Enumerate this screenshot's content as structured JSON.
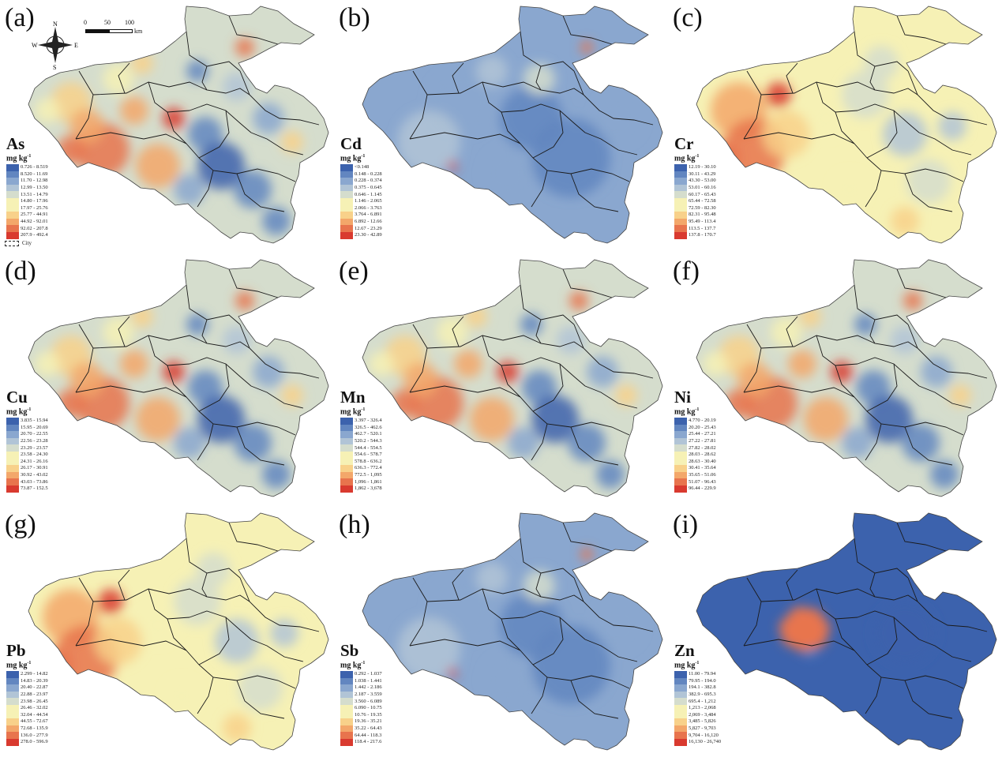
{
  "map": {
    "unit": "mg kg",
    "unit_sup": "-1",
    "compass": {
      "n": "N",
      "s": "S",
      "e": "E",
      "w": "W"
    },
    "scale": {
      "ticks": [
        "0",
        "50",
        "100"
      ],
      "unit": "km"
    },
    "city_legend": "City",
    "colors": [
      "#3c62ad",
      "#6286c0",
      "#8aa7cf",
      "#b1c4d6",
      "#d5ddcd",
      "#f6f1b5",
      "#f8d18a",
      "#f3a76a",
      "#e8744d",
      "#d93a2f"
    ],
    "panels": [
      {
        "letter": "(a)",
        "element": "As",
        "ramp": "mixed",
        "show_compass": true,
        "show_scale": true,
        "show_city": true,
        "classes": [
          "0.726 - 8.519",
          "8.520 - 11.69",
          "11.70 - 12.98",
          "12.99 - 13.50",
          "13.51 - 14.79",
          "14.80 - 17.96",
          "17.97 - 25.76",
          "25.77 - 44.91",
          "44.92 - 92.01",
          "92.02 - 207.8",
          "207.9 - 492.4"
        ]
      },
      {
        "letter": "(b)",
        "element": "Cd",
        "ramp": "blue",
        "classes": [
          "<0.148",
          "0.148 - 0.228",
          "0.228 - 0.374",
          "0.375 - 0.645",
          "0.646 - 1.145",
          "1.146 - 2.065",
          "2.066 - 3.763",
          "3.764 - 6.891",
          "6.892 - 12.66",
          "12.67 - 23.29",
          "23.30 - 42.89"
        ]
      },
      {
        "letter": "(c)",
        "element": "Cr",
        "ramp": "warm",
        "classes": [
          "12.19 - 30.10",
          "30.11 - 43.29",
          "43.30 - 53.00",
          "53.01 - 60.16",
          "60.17 - 65.43",
          "65.44 - 72.58",
          "72.59 - 82.30",
          "82.31 - 95.48",
          "95.49 - 113.4",
          "113.5 - 137.7",
          "137.8 - 170.7"
        ]
      },
      {
        "letter": "(d)",
        "element": "Cu",
        "ramp": "mixed",
        "classes": [
          "3.835 - 15.94",
          "15.95 - 20.69",
          "20.70 - 22.55",
          "22.56 - 23.28",
          "23.29 - 23.57",
          "23.58 - 24.30",
          "24.31 - 26.16",
          "26.17 - 30.91",
          "30.92 - 43.02",
          "43.03 - 73.86",
          "73.87 - 152.5"
        ]
      },
      {
        "letter": "(e)",
        "element": "Mn",
        "ramp": "mixed",
        "classes": [
          "3.397 - 326.4",
          "326.5 - 462.6",
          "462.7 - 520.1",
          "520.2 - 544.3",
          "544.4 - 554.5",
          "554.6 - 578.7",
          "578.8 - 636.2",
          "636.3 - 772.4",
          "772.5 - 1,095",
          "1,096 - 1,861",
          "1,862 - 3,678"
        ]
      },
      {
        "letter": "(f)",
        "element": "Ni",
        "ramp": "mixed",
        "classes": [
          "4.770 - 20.19",
          "20.20 - 25.43",
          "25.44 - 27.21",
          "27.22 - 27.81",
          "27.82 - 28.02",
          "28.03 - 28.62",
          "28.63 - 30.40",
          "30.41 - 35.64",
          "35.65 - 51.06",
          "51.07 - 96.43",
          "96.44 - 229.9"
        ]
      },
      {
        "letter": "(g)",
        "element": "Pb",
        "ramp": "warm",
        "classes": [
          "2.299 - 14.82",
          "14.83 - 20.39",
          "20.40 - 22.87",
          "22.88 - 23.97",
          "23.98 - 26.45",
          "26.46 - 32.02",
          "32.04 - 44.54",
          "44.55 - 72.67",
          "72.68 - 135.9",
          "136.0 - 277.9",
          "278.0 - 596.9"
        ]
      },
      {
        "letter": "(h)",
        "element": "Sb",
        "ramp": "blue",
        "classes": [
          "0.292 - 1.037",
          "1.038 - 1.441",
          "1.442 - 2.186",
          "2.187 - 3.559",
          "3.560 - 6.089",
          "6.090 - 10.75",
          "10.76 - 19.35",
          "19.36 - 35.21",
          "35.22 - 64.43",
          "64.44 - 118.3",
          "118.4 - 217.6"
        ]
      },
      {
        "letter": "(i)",
        "element": "Zn",
        "ramp": "deepblue",
        "classes": [
          "11.00 - 79.94",
          "79.95 - 194.0",
          "194.1 - 382.8",
          "382.9 - 695.3",
          "695.4 - 1,212",
          "1,213 - 2,068",
          "2,069 - 3,484",
          "3,485 - 5,826",
          "5,827 - 9,703",
          "9,704 - 16,120",
          "16,130 - 26,740"
        ]
      }
    ]
  }
}
